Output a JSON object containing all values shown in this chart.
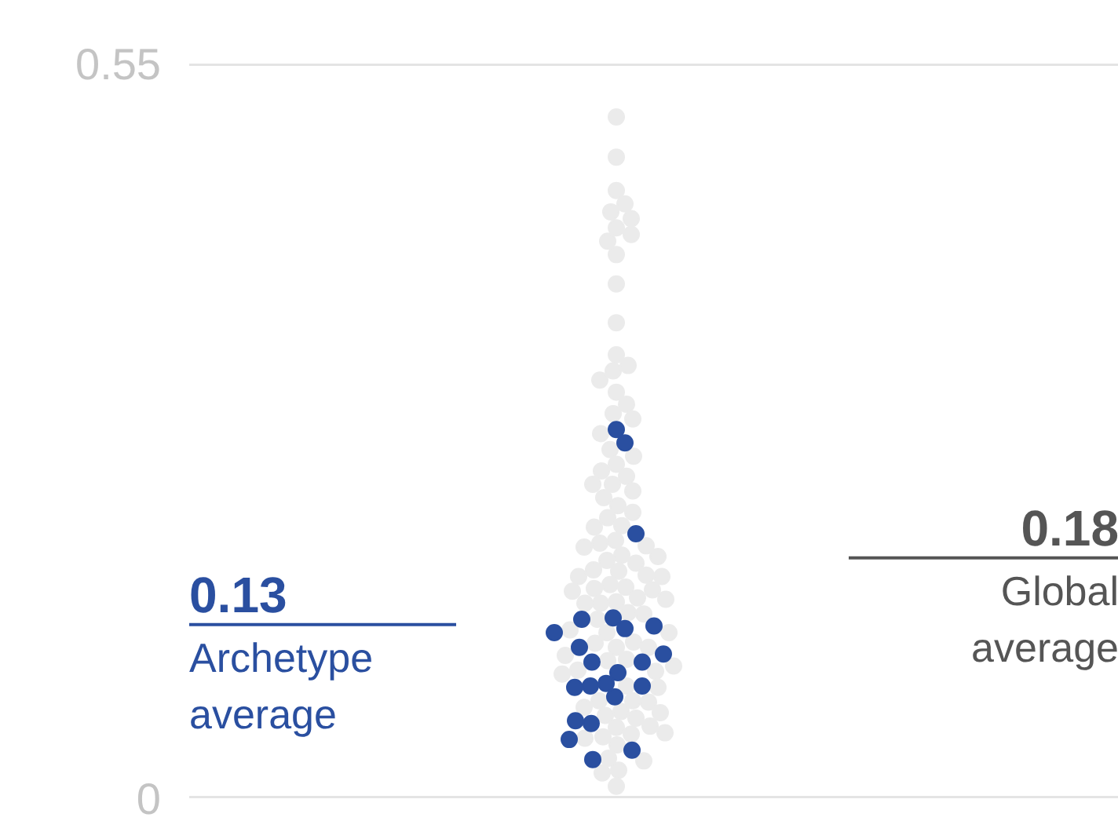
{
  "chart_data": {
    "type": "scatter",
    "categories": [
      null
    ],
    "annotations": [
      {
        "text": "0.13",
        "y": 0.13
      },
      {
        "text": "0.18",
        "y": 0.18
      }
    ],
    "ylim": [
      0,
      0.55
    ],
    "yticks": [
      0,
      0.55
    ],
    "tick_labels": "y",
    "grid": "y",
    "marker": "circle",
    "series": [
      {
        "color": "#ebebeb",
        "x": [
          null,
          null,
          null,
          null,
          null,
          null,
          null,
          null,
          null,
          null,
          null,
          null,
          null,
          null,
          null,
          null,
          null,
          null,
          null,
          null,
          null,
          null,
          null,
          null,
          null,
          null,
          null,
          null,
          null,
          null,
          null,
          null,
          null,
          null,
          null,
          null,
          null,
          null,
          null,
          null,
          null,
          null,
          null,
          null,
          null,
          null,
          null,
          null,
          null,
          null,
          null,
          null,
          null,
          null,
          null,
          null,
          null,
          null,
          null,
          null,
          null,
          null,
          null,
          null,
          null,
          null,
          null,
          null,
          null,
          null,
          null,
          null,
          null,
          null,
          null,
          null,
          null,
          null,
          null,
          null,
          null,
          null,
          null,
          null,
          null,
          null,
          null,
          null,
          null,
          null,
          null,
          null,
          null,
          null,
          null,
          null,
          null
        ],
        "values": [
          0.51,
          0.48,
          0.455,
          0.445,
          0.439,
          0.434,
          0.427,
          0.422,
          0.417,
          0.407,
          0.385,
          0.356,
          0.332,
          0.324,
          0.32,
          0.313,
          0.304,
          0.295,
          0.288,
          0.284,
          0.273,
          0.261,
          0.256,
          0.25,
          0.245,
          0.241,
          0.235,
          0.23,
          0.235,
          0.225,
          0.219,
          0.214,
          0.21,
          0.203,
          0.204,
          0.189,
          0.193,
          0.191,
          0.188,
          0.182,
          0.178,
          0.181,
          0.176,
          0.167,
          0.171,
          0.166,
          0.17,
          0.166,
          0.157,
          0.16,
          0.156,
          0.158,
          0.155,
          0.147,
          0.15,
          0.146,
          0.149,
          0.146,
          0.139,
          0.138,
          0.134,
          0.124,
          0.126,
          0.124,
          0.117,
          0.113,
          0.116,
          0.113,
          0.103,
          0.104,
          0.107,
          0.099,
          0.093,
          0.096,
          0.095,
          0.083,
          0.084,
          0.073,
          0.072,
          0.073,
          0.068,
          0.064,
          0.062,
          0.065,
          0.06,
          0.054,
          0.053,
          0.049,
          0.045,
          0.046,
          0.048,
          0.04,
          0.028,
          0.03,
          0.019,
          0.021,
          0.009
        ]
      },
      {
        "color": "#2a4fa0",
        "x": [
          null,
          null,
          null,
          null,
          null,
          null,
          null,
          null,
          null,
          null,
          null,
          null,
          null,
          null,
          null,
          null,
          null,
          null,
          null,
          null,
          null,
          null,
          null
        ],
        "values": [
          0.198,
          0.276,
          0.266,
          0.135,
          0.129,
          0.134,
          0.124,
          0.127,
          0.113,
          0.108,
          0.102,
          0.102,
          0.094,
          0.084,
          0.083,
          0.084,
          0.086,
          0.076,
          0.056,
          0.058,
          0.044,
          0.036,
          0.029
        ]
      }
    ],
    "ref_lines": [
      {
        "axis": "y",
        "value": 0.13,
        "label": "Archetype average",
        "color": "#2a4fa0"
      },
      {
        "axis": "y",
        "value": 0.18,
        "label": "Global average",
        "color": "#555555"
      }
    ]
  }
}
